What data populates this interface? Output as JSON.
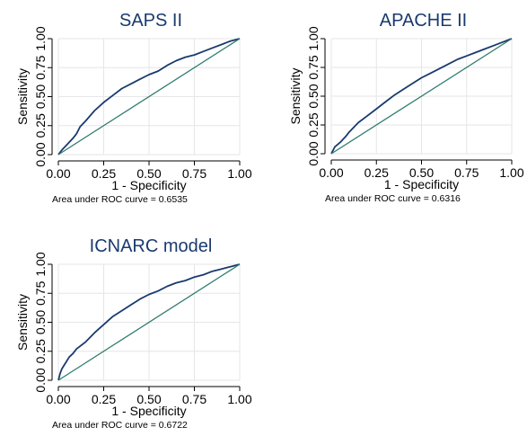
{
  "colors": {
    "curve": "#1a3a6e",
    "diagonal": "#2e7d6e",
    "grid": "#e6e6e6",
    "axis": "#000000",
    "title": "#1a3a6e"
  },
  "chart_data": [
    {
      "type": "line",
      "title": "SAPS II",
      "xlabel": "1 - Specificity",
      "ylabel": "Sensitivity",
      "xlim": [
        0,
        1
      ],
      "ylim": [
        0,
        1
      ],
      "ticks": [
        "0.00",
        "0.25",
        "0.50",
        "0.75",
        "1.00"
      ],
      "grid": true,
      "note": "Area under ROC curve = 0.6535",
      "series": [
        {
          "x": [
            0,
            0.02,
            0.05,
            0.08,
            0.1,
            0.12,
            0.15,
            0.2,
            0.25,
            0.3,
            0.35,
            0.4,
            0.45,
            0.5,
            0.55,
            0.6,
            0.65,
            0.7,
            0.75,
            0.8,
            0.85,
            0.9,
            0.95,
            1
          ],
          "y": [
            0,
            0.04,
            0.09,
            0.14,
            0.18,
            0.24,
            0.29,
            0.38,
            0.45,
            0.51,
            0.57,
            0.61,
            0.65,
            0.69,
            0.72,
            0.77,
            0.81,
            0.84,
            0.86,
            0.89,
            0.92,
            0.95,
            0.98,
            1
          ]
        },
        {
          "x": [
            0,
            1
          ],
          "y": [
            0,
            1
          ]
        }
      ]
    },
    {
      "type": "line",
      "title": "APACHE II",
      "xlabel": "1 - Specificity",
      "ylabel": "Sensitivity",
      "xlim": [
        0,
        1
      ],
      "ylim": [
        0,
        1
      ],
      "ticks": [
        "0.00",
        "0.25",
        "0.50",
        "0.75",
        "1.00"
      ],
      "grid": true,
      "note": "Area under ROC curve = 0.6316",
      "series": [
        {
          "x": [
            0,
            0.02,
            0.05,
            0.08,
            0.1,
            0.15,
            0.2,
            0.25,
            0.3,
            0.35,
            0.4,
            0.45,
            0.5,
            0.55,
            0.6,
            0.65,
            0.7,
            0.75,
            0.8,
            0.85,
            0.9,
            0.95,
            1
          ],
          "y": [
            0,
            0.06,
            0.1,
            0.15,
            0.19,
            0.27,
            0.33,
            0.39,
            0.45,
            0.51,
            0.56,
            0.61,
            0.66,
            0.7,
            0.74,
            0.78,
            0.82,
            0.85,
            0.88,
            0.91,
            0.94,
            0.97,
            1
          ]
        },
        {
          "x": [
            0,
            1
          ],
          "y": [
            0,
            1
          ]
        }
      ]
    },
    {
      "type": "line",
      "title": "ICNARC model",
      "xlabel": "1 - Specificity",
      "ylabel": "Sensitivity",
      "xlim": [
        0,
        1
      ],
      "ylim": [
        0,
        1
      ],
      "ticks": [
        "0.00",
        "0.25",
        "0.50",
        "0.75",
        "1.00"
      ],
      "grid": true,
      "note": "Area under ROC curve = 0.6722",
      "series": [
        {
          "x": [
            0,
            0.01,
            0.02,
            0.04,
            0.06,
            0.08,
            0.1,
            0.15,
            0.2,
            0.25,
            0.3,
            0.35,
            0.4,
            0.45,
            0.5,
            0.55,
            0.6,
            0.65,
            0.7,
            0.75,
            0.8,
            0.85,
            0.9,
            0.95,
            1
          ],
          "y": [
            0,
            0.06,
            0.1,
            0.15,
            0.2,
            0.23,
            0.27,
            0.33,
            0.41,
            0.48,
            0.55,
            0.6,
            0.65,
            0.7,
            0.74,
            0.77,
            0.81,
            0.84,
            0.86,
            0.89,
            0.91,
            0.94,
            0.96,
            0.98,
            1
          ]
        },
        {
          "x": [
            0,
            1
          ],
          "y": [
            0,
            1
          ]
        }
      ]
    }
  ]
}
